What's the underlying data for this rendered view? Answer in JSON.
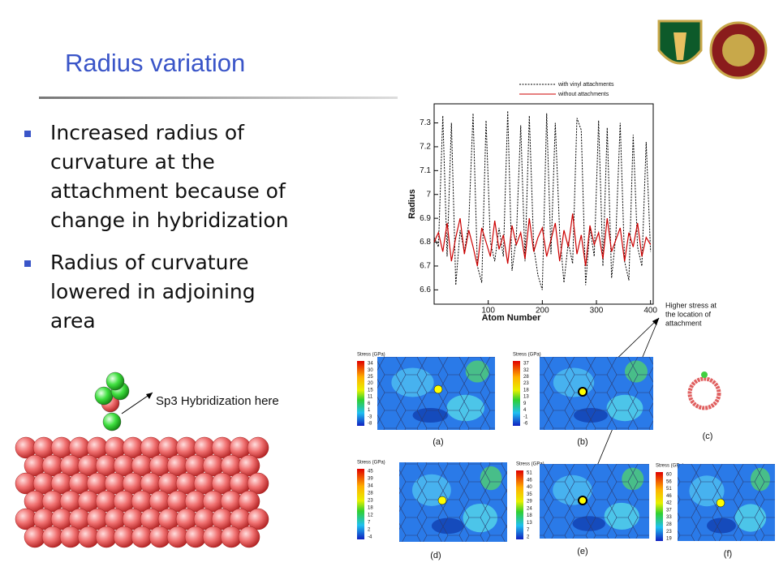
{
  "title": "Radius variation",
  "bullets": [
    [
      "Increased radius of",
      "curvature at the",
      "attachment because of",
      "change in hybridization"
    ],
    [
      "Radius of curvature",
      "lowered in adjoining",
      "area"
    ]
  ],
  "annotation": "Sp3 Hybridization here",
  "note": [
    "Higher stress at",
    "the location of",
    "attachment"
  ],
  "chart_data": {
    "type": "line",
    "xlabel": "Atom Number",
    "ylabel": "Radius",
    "xlim": [
      0,
      405
    ],
    "ylim": [
      6.54,
      7.38
    ],
    "xticks": [
      100,
      200,
      300,
      400
    ],
    "yticks": [
      6.6,
      6.7,
      6.8,
      6.9,
      7,
      7.1,
      7.2,
      7.3
    ],
    "legend": "top",
    "x": [
      0,
      8,
      16,
      24,
      32,
      40,
      48,
      56,
      64,
      72,
      80,
      88,
      96,
      104,
      112,
      120,
      128,
      136,
      144,
      152,
      160,
      168,
      176,
      184,
      192,
      200,
      208,
      216,
      224,
      232,
      240,
      248,
      256,
      264,
      272,
      280,
      288,
      296,
      304,
      312,
      320,
      328,
      336,
      344,
      352,
      360,
      368,
      376,
      384,
      392,
      400
    ],
    "series": [
      {
        "name": "with vinyl attachments",
        "color": "#000000",
        "dash": true,
        "values": [
          6.82,
          6.78,
          7.33,
          6.74,
          7.3,
          6.62,
          6.85,
          6.76,
          6.88,
          7.34,
          6.7,
          6.63,
          7.31,
          6.8,
          6.72,
          6.86,
          6.74,
          7.35,
          6.68,
          6.82,
          7.29,
          6.72,
          7.33,
          6.78,
          6.66,
          6.6,
          7.34,
          6.75,
          7.3,
          6.84,
          6.63,
          6.8,
          6.71,
          7.32,
          7.27,
          6.62,
          6.86,
          6.74,
          7.31,
          6.7,
          7.28,
          6.65,
          6.83,
          7.3,
          6.72,
          6.64,
          7.25,
          6.78,
          6.7,
          7.22,
          6.76
        ]
      },
      {
        "name": "without attachments",
        "color": "#cc0000",
        "dash": false,
        "values": [
          6.8,
          6.84,
          6.76,
          6.88,
          6.72,
          6.82,
          6.9,
          6.75,
          6.85,
          6.78,
          6.7,
          6.86,
          6.8,
          6.74,
          6.89,
          6.77,
          6.83,
          6.71,
          6.87,
          6.79,
          6.84,
          6.73,
          6.9,
          6.76,
          6.82,
          6.86,
          6.74,
          6.81,
          6.88,
          6.72,
          6.85,
          6.78,
          6.92,
          6.75,
          6.83,
          6.7,
          6.87,
          6.79,
          6.84,
          6.73,
          6.9,
          6.76,
          6.81,
          6.86,
          6.72,
          6.84,
          6.78,
          6.88,
          6.74,
          6.82,
          6.79
        ]
      }
    ]
  },
  "panels": [
    {
      "scale_title": "Stress (GPa)",
      "scale": [
        "34",
        "30",
        "25",
        "20",
        "15",
        "11",
        "6",
        "1",
        "-3",
        "-8"
      ],
      "label": "(a)"
    },
    {
      "scale_title": "Stress (GPa)",
      "scale": [
        "37",
        "32",
        "28",
        "23",
        "18",
        "13",
        "9",
        "4",
        "-1",
        "-6"
      ],
      "label": "(b)"
    },
    {
      "label": "(c)"
    },
    {
      "scale_title": "Stress (GPa)",
      "scale": [
        "45",
        "39",
        "34",
        "28",
        "23",
        "18",
        "12",
        "7",
        "2",
        "-4"
      ],
      "label": "(d)"
    },
    {
      "scale_title": "Stress (GPa)",
      "scale": [
        "51",
        "46",
        "40",
        "35",
        "29",
        "24",
        "18",
        "13",
        "7",
        "2"
      ],
      "label": "(e)"
    },
    {
      "scale_title": "Stress (GPa)",
      "scale": [
        "60",
        "56",
        "51",
        "46",
        "42",
        "37",
        "33",
        "28",
        "23",
        "19"
      ],
      "label": "(f)"
    }
  ]
}
